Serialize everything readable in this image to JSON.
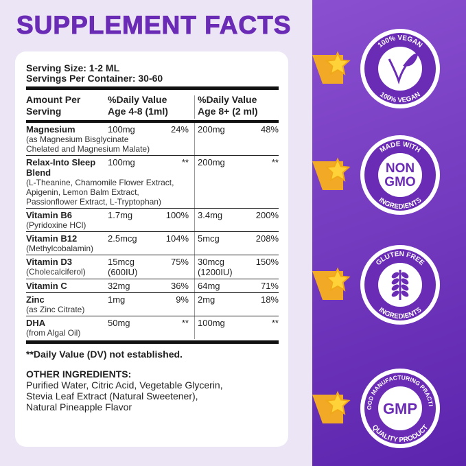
{
  "header": {
    "title": "SUPPLEMENT FACTS"
  },
  "facts": {
    "serving_size": "Serving Size: 1-2 ML",
    "servings_per_container": "Servings Per Container: 30-60",
    "columns": [
      [
        "Amount Per",
        "Serving"
      ],
      [
        "%Daily Value",
        "Age 4-8 (1ml)"
      ],
      [
        "%Daily Value",
        "Age 8+ (2 ml)"
      ]
    ],
    "rows": [
      {
        "name": "Magnesium",
        "sub": [
          "(as Magnesium Bisglycinate",
          "Chelated and Magnesium Malate)"
        ],
        "amount1": "100mg",
        "dv1": "24%",
        "amount2": "200mg",
        "dv2": "48%"
      },
      {
        "name": "Relax-Into Sleep Blend",
        "sub": [
          "(L-Theanine, Chamomile Flower Extract,",
          "Apigenin, Lemon Balm Extract,",
          "Passionflower Extract, L-Tryptophan)"
        ],
        "amount1": "100mg",
        "dv1": "**",
        "amount2": "200mg",
        "dv2": "**"
      },
      {
        "name": "Vitamin B6",
        "sub": [
          "(Pyridoxine HCl)"
        ],
        "amount1": "1.7mg",
        "dv1": "100%",
        "amount2": "3.4mg",
        "dv2": "200%"
      },
      {
        "name": "Vitamin B12",
        "sub": [
          "(Methylcobalamin)"
        ],
        "amount1": "2.5mcg",
        "dv1": "104%",
        "amount2": "5mcg",
        "dv2": "208%"
      },
      {
        "name": "Vitamin D3",
        "sub": [
          "(Cholecalciferol)"
        ],
        "amount1": "15mcg",
        "amount1_sub": "(600IU)",
        "dv1": "75%",
        "amount2": "30mcg",
        "amount2_sub": "(1200IU)",
        "dv2": "150%"
      },
      {
        "name": "Vitamin C",
        "amount1": "32mg",
        "dv1": "36%",
        "amount2": "64mg",
        "dv2": "71%"
      },
      {
        "name": "Zinc",
        "sub": [
          "(as Zinc Citrate)"
        ],
        "amount1": "1mg",
        "dv1": "9%",
        "amount2": "2mg",
        "dv2": "18%"
      },
      {
        "name": "DHA",
        "sub": [
          "(from Algal Oil)"
        ],
        "amount1": "50mg",
        "dv1": "**",
        "amount2": "100mg",
        "dv2": "**"
      }
    ],
    "footnote": "**Daily Value (DV) not established.",
    "other_title": "OTHER INGREDIENTS:",
    "other_lines": [
      "Purified Water, Citric Acid, Vegetable Glycerin,",
      "Stevia Leaf Extract (Natural Sweetener),",
      "Natural Pineapple Flavor"
    ]
  },
  "badges": [
    {
      "top": "100% VEGAN",
      "bottom": "100% VEGAN"
    },
    {
      "top": "MADE WITH",
      "center": [
        "NON",
        "GMO"
      ],
      "bottom": "INGREDIENTS"
    },
    {
      "top": "GLUTEN FREE",
      "bottom": "INGREDIENTS"
    },
    {
      "top": "GOOD MANUFACTURING PRACTICE",
      "center": [
        "GMP"
      ],
      "bottom": "QUALITY PRODUCT"
    }
  ]
}
